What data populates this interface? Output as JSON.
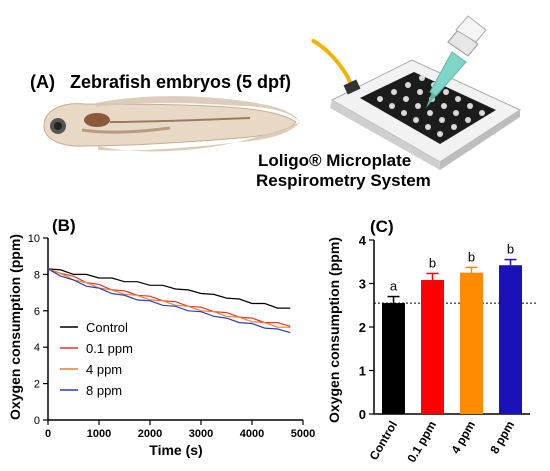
{
  "panel_a": {
    "label": "(A)",
    "title": "Zebrafish embryos (5 dpf)",
    "system_line1": "Loligo® Microplate",
    "system_line2": "Respirometry System",
    "icons": [
      "zebrafish-larva-icon",
      "microplate-respirometer-icon",
      "pipette-icon"
    ]
  },
  "chart_data": [
    {
      "type": "line",
      "panel_label": "(B)",
      "xlabel": "Time (s)",
      "ylabel": "Oxygen consumption (ppm)",
      "xlim": [
        0,
        5000
      ],
      "ylim": [
        0,
        10
      ],
      "xticks": [
        0,
        1000,
        2000,
        3000,
        4000,
        5000
      ],
      "yticks": [
        0,
        2,
        4,
        6,
        8,
        10
      ],
      "x": [
        0,
        250,
        500,
        750,
        1000,
        1250,
        1500,
        1750,
        2000,
        2250,
        2500,
        2750,
        3000,
        3250,
        3500,
        3750,
        4000,
        4250,
        4500,
        4750
      ],
      "legend_position": "left",
      "series": [
        {
          "name": "Control",
          "color": "#000000",
          "values": [
            8.3,
            8.2,
            8.05,
            7.95,
            7.85,
            7.75,
            7.65,
            7.55,
            7.45,
            7.35,
            7.25,
            7.1,
            7.0,
            6.85,
            6.75,
            6.6,
            6.45,
            6.35,
            6.2,
            6.1
          ]
        },
        {
          "name": "0.1 ppm",
          "color": "#e8332a",
          "values": [
            8.3,
            8.1,
            7.85,
            7.6,
            7.4,
            7.2,
            7.05,
            6.9,
            6.75,
            6.6,
            6.45,
            6.3,
            6.15,
            6.0,
            5.85,
            5.7,
            5.55,
            5.4,
            5.3,
            5.2
          ]
        },
        {
          "name": "4 ppm",
          "color": "#f07d2a",
          "values": [
            8.3,
            8.0,
            7.75,
            7.5,
            7.3,
            7.1,
            6.95,
            6.8,
            6.65,
            6.5,
            6.35,
            6.2,
            6.05,
            5.9,
            5.75,
            5.6,
            5.45,
            5.3,
            5.15,
            5.05
          ]
        },
        {
          "name": "8 ppm",
          "color": "#2b3fb5",
          "values": [
            8.3,
            7.95,
            7.65,
            7.4,
            7.2,
            7.0,
            6.8,
            6.65,
            6.5,
            6.35,
            6.2,
            6.05,
            5.9,
            5.75,
            5.55,
            5.4,
            5.25,
            5.1,
            4.95,
            4.85
          ]
        }
      ]
    },
    {
      "type": "bar",
      "panel_label": "(C)",
      "ylabel": "Oxygen consumption (ppm)",
      "ylim": [
        0,
        4
      ],
      "yticks": [
        0,
        1,
        2,
        3,
        4
      ],
      "categories": [
        "Control",
        "0.1 ppm",
        "4 ppm",
        "8 ppm"
      ],
      "values": [
        2.55,
        3.08,
        3.25,
        3.42
      ],
      "errors": [
        0.15,
        0.15,
        0.12,
        0.13
      ],
      "letters": [
        "a",
        "b",
        "b",
        "b"
      ],
      "colors": [
        "#000000",
        "#ff0000",
        "#ff8c00",
        "#1a12b8"
      ],
      "reference_line": 2.55
    }
  ]
}
